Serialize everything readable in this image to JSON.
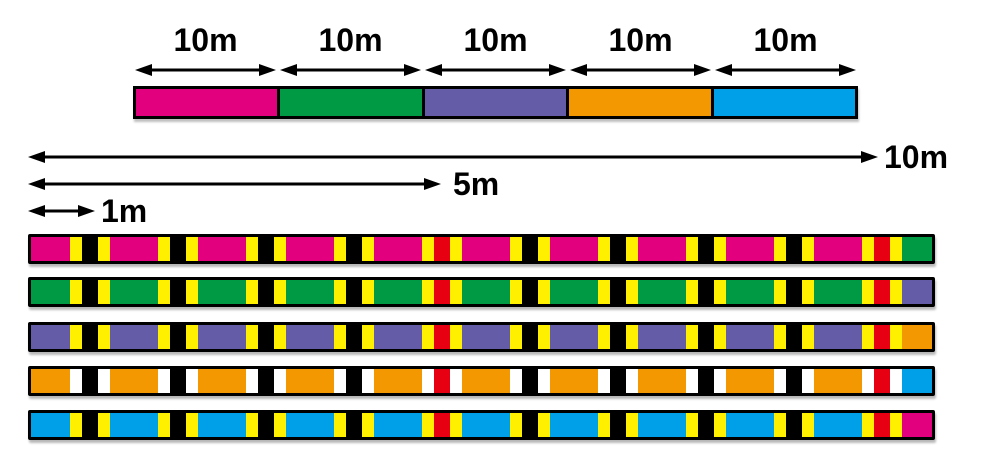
{
  "palette": {
    "magenta": "#E3007F",
    "green": "#009944",
    "purple": "#655CA8",
    "orange": "#F39800",
    "cyan": "#00A0E9",
    "yellow": "#FFF000",
    "white": "#FFFFFF",
    "red": "#E60012",
    "black": "#000000"
  },
  "top_ruler": {
    "segments": [
      {
        "length_label": "10m",
        "color": "magenta"
      },
      {
        "length_label": "10m",
        "color": "green"
      },
      {
        "length_label": "10m",
        "color": "purple"
      },
      {
        "length_label": "10m",
        "color": "orange"
      },
      {
        "length_label": "10m",
        "color": "cyan"
      }
    ]
  },
  "scale_arrows": [
    {
      "label": "10m"
    },
    {
      "label": "5m"
    },
    {
      "label": "1m"
    }
  ],
  "bars": [
    {
      "base_color": "magenta",
      "next_color": "green",
      "tick_color": "yellow"
    },
    {
      "base_color": "green",
      "next_color": "purple",
      "tick_color": "yellow"
    },
    {
      "base_color": "purple",
      "next_color": "orange",
      "tick_color": "yellow"
    },
    {
      "base_color": "orange",
      "next_color": "cyan",
      "tick_color": "white"
    },
    {
      "base_color": "cyan",
      "next_color": "magenta",
      "tick_color": "yellow"
    }
  ],
  "mark_pattern": {
    "meter_marks": [
      1,
      2,
      3,
      4,
      5,
      6,
      7,
      8,
      9,
      10
    ],
    "red_core_marks": [
      5,
      10
    ],
    "black_core_color": "black",
    "red_core_color": "red"
  }
}
